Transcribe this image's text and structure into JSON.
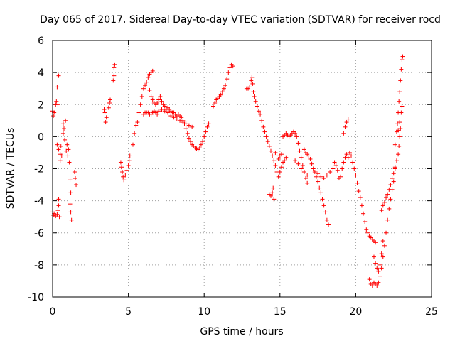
{
  "chart_data": {
    "type": "scatter",
    "title": "Day 065 of 2017, Sidereal Day-to-day VTEC variation (SDTVAR) for receiver rocd",
    "xlabel": "GPS time / hours",
    "ylabel": "SDTVAR / TECUs",
    "xlim": [
      0,
      25
    ],
    "ylim": [
      -10,
      6
    ],
    "xticks": [
      0,
      5,
      10,
      15,
      20,
      25
    ],
    "yticks": [
      -10,
      -8,
      -6,
      -4,
      -2,
      0,
      2,
      4,
      6
    ],
    "grid": true,
    "marker": "plus",
    "color": "#ff0000",
    "series": [
      {
        "name": "sdtvar",
        "points": [
          [
            0.0,
            1.6
          ],
          [
            0.05,
            1.3
          ],
          [
            0.1,
            1.5
          ],
          [
            0.2,
            2.0
          ],
          [
            0.25,
            2.2
          ],
          [
            0.3,
            3.1
          ],
          [
            0.35,
            2.0
          ],
          [
            0.4,
            3.8
          ],
          [
            0.3,
            -0.5
          ],
          [
            0.4,
            -0.8
          ],
          [
            0.5,
            -1.1
          ],
          [
            0.5,
            -1.5
          ],
          [
            0.55,
            -0.6
          ],
          [
            0.6,
            -1.2
          ],
          [
            0.7,
            0.2
          ],
          [
            0.7,
            0.8
          ],
          [
            0.75,
            0.5
          ],
          [
            0.8,
            -0.2
          ],
          [
            0.85,
            1.0
          ],
          [
            0.9,
            -0.9
          ],
          [
            0.95,
            -0.5
          ],
          [
            1.0,
            -1.2
          ],
          [
            1.05,
            -0.8
          ],
          [
            1.1,
            -1.6
          ],
          [
            0.0,
            -4.7
          ],
          [
            0.05,
            -4.9
          ],
          [
            0.1,
            -4.8
          ],
          [
            0.2,
            -4.95
          ],
          [
            0.3,
            -4.85
          ],
          [
            0.35,
            -4.6
          ],
          [
            0.4,
            -4.3
          ],
          [
            0.4,
            -3.9
          ],
          [
            0.45,
            -5.0
          ],
          [
            1.15,
            -2.7
          ],
          [
            1.2,
            -3.5
          ],
          [
            1.15,
            -4.2
          ],
          [
            1.2,
            -4.7
          ],
          [
            1.25,
            -5.2
          ],
          [
            1.45,
            -2.2
          ],
          [
            1.5,
            -2.6
          ],
          [
            1.55,
            -3.0
          ],
          [
            3.4,
            1.7
          ],
          [
            3.45,
            1.5
          ],
          [
            3.5,
            0.9
          ],
          [
            3.55,
            1.2
          ],
          [
            3.7,
            1.8
          ],
          [
            3.75,
            2.1
          ],
          [
            3.8,
            2.3
          ],
          [
            4.0,
            3.5
          ],
          [
            4.05,
            3.8
          ],
          [
            4.05,
            4.3
          ],
          [
            4.1,
            4.5
          ],
          [
            4.5,
            -1.6
          ],
          [
            4.55,
            -1.9
          ],
          [
            4.6,
            -2.2
          ],
          [
            4.65,
            -2.5
          ],
          [
            4.7,
            -2.7
          ],
          [
            4.8,
            -2.4
          ],
          [
            4.9,
            -2.1
          ],
          [
            5.0,
            -1.8
          ],
          [
            5.05,
            -1.5
          ],
          [
            5.1,
            -1.2
          ],
          [
            5.3,
            -0.5
          ],
          [
            5.4,
            0.2
          ],
          [
            5.5,
            0.7
          ],
          [
            5.6,
            0.9
          ],
          [
            5.7,
            1.5
          ],
          [
            5.8,
            2.0
          ],
          [
            5.9,
            2.5
          ],
          [
            6.0,
            3.0
          ],
          [
            6.1,
            3.2
          ],
          [
            6.2,
            3.4
          ],
          [
            6.3,
            3.7
          ],
          [
            6.4,
            3.9
          ],
          [
            6.5,
            4.0
          ],
          [
            6.6,
            4.1
          ],
          [
            6.4,
            2.9
          ],
          [
            6.5,
            2.5
          ],
          [
            6.6,
            2.3
          ],
          [
            6.7,
            2.1
          ],
          [
            6.8,
            2.0
          ],
          [
            6.9,
            2.1
          ],
          [
            7.0,
            2.3
          ],
          [
            7.1,
            2.5
          ],
          [
            7.2,
            2.2
          ],
          [
            7.3,
            2.0
          ],
          [
            7.4,
            1.9
          ],
          [
            7.5,
            1.7
          ],
          [
            7.6,
            1.8
          ],
          [
            7.7,
            1.7
          ],
          [
            7.8,
            1.6
          ],
          [
            7.9,
            1.5
          ],
          [
            8.0,
            1.5
          ],
          [
            8.1,
            1.4
          ],
          [
            8.2,
            1.3
          ],
          [
            8.3,
            1.4
          ],
          [
            8.4,
            1.3
          ],
          [
            8.5,
            1.2
          ],
          [
            8.6,
            1.0
          ],
          [
            8.7,
            0.8
          ],
          [
            8.8,
            0.5
          ],
          [
            8.9,
            0.2
          ],
          [
            9.0,
            -0.1
          ],
          [
            9.1,
            -0.3
          ],
          [
            9.2,
            -0.5
          ],
          [
            9.3,
            -0.6
          ],
          [
            9.4,
            -0.7
          ],
          [
            9.5,
            -0.75
          ],
          [
            9.6,
            -0.8
          ],
          [
            9.7,
            -0.7
          ],
          [
            9.8,
            -0.5
          ],
          [
            9.9,
            -0.3
          ],
          [
            10.0,
            0.0
          ],
          [
            10.1,
            0.3
          ],
          [
            10.2,
            0.6
          ],
          [
            10.3,
            0.8
          ],
          [
            6.0,
            1.4
          ],
          [
            6.1,
            1.5
          ],
          [
            6.2,
            1.5
          ],
          [
            6.3,
            1.5
          ],
          [
            6.4,
            1.4
          ],
          [
            6.5,
            1.4
          ],
          [
            6.6,
            1.5
          ],
          [
            6.7,
            1.6
          ],
          [
            6.8,
            1.5
          ],
          [
            6.9,
            1.4
          ],
          [
            7.0,
            1.6
          ],
          [
            7.2,
            1.7
          ],
          [
            7.4,
            1.6
          ],
          [
            7.6,
            1.5
          ],
          [
            7.8,
            1.3
          ],
          [
            8.0,
            1.2
          ],
          [
            8.2,
            1.1
          ],
          [
            8.4,
            1.0
          ],
          [
            8.6,
            0.9
          ],
          [
            8.8,
            0.8
          ],
          [
            9.0,
            0.7
          ],
          [
            9.2,
            0.6
          ],
          [
            10.6,
            1.9
          ],
          [
            10.7,
            2.1
          ],
          [
            10.8,
            2.3
          ],
          [
            10.9,
            2.4
          ],
          [
            11.0,
            2.5
          ],
          [
            11.1,
            2.6
          ],
          [
            11.2,
            2.8
          ],
          [
            11.3,
            3.0
          ],
          [
            11.4,
            3.2
          ],
          [
            11.5,
            3.6
          ],
          [
            11.6,
            4.0
          ],
          [
            11.7,
            4.3
          ],
          [
            11.8,
            4.5
          ],
          [
            11.9,
            4.4
          ],
          [
            12.8,
            3.0
          ],
          [
            12.9,
            3.0
          ],
          [
            13.0,
            3.1
          ],
          [
            13.1,
            3.5
          ],
          [
            13.15,
            3.7
          ],
          [
            13.2,
            3.3
          ],
          [
            13.25,
            2.8
          ],
          [
            13.3,
            2.5
          ],
          [
            13.4,
            2.2
          ],
          [
            13.5,
            1.9
          ],
          [
            13.6,
            1.6
          ],
          [
            13.7,
            1.4
          ],
          [
            13.8,
            1.0
          ],
          [
            13.9,
            0.6
          ],
          [
            14.0,
            0.3
          ],
          [
            14.1,
            0.0
          ],
          [
            14.2,
            -0.3
          ],
          [
            14.3,
            -0.6
          ],
          [
            14.4,
            -0.9
          ],
          [
            14.5,
            -1.2
          ],
          [
            14.6,
            -1.5
          ],
          [
            14.7,
            -1.8
          ],
          [
            14.8,
            -2.2
          ],
          [
            14.9,
            -2.5
          ],
          [
            15.0,
            -2.2
          ],
          [
            15.1,
            -1.9
          ],
          [
            15.2,
            -1.6
          ],
          [
            15.3,
            -1.5
          ],
          [
            15.4,
            -1.3
          ],
          [
            14.3,
            -3.6
          ],
          [
            14.4,
            -3.7
          ],
          [
            14.5,
            -3.5
          ],
          [
            14.55,
            -3.2
          ],
          [
            14.6,
            -3.9
          ],
          [
            14.7,
            -1.0
          ],
          [
            14.8,
            -1.2
          ],
          [
            14.9,
            -1.4
          ],
          [
            15.0,
            -1.2
          ],
          [
            15.1,
            -1.1
          ],
          [
            15.2,
            0.0
          ],
          [
            15.3,
            0.1
          ],
          [
            15.4,
            0.2
          ],
          [
            15.5,
            0.1
          ],
          [
            15.6,
            0.0
          ],
          [
            15.7,
            0.1
          ],
          [
            15.8,
            0.2
          ],
          [
            15.9,
            0.3
          ],
          [
            16.0,
            0.2
          ],
          [
            16.1,
            0.0
          ],
          [
            16.2,
            -0.4
          ],
          [
            16.3,
            -0.9
          ],
          [
            16.4,
            -1.3
          ],
          [
            16.5,
            -1.8
          ],
          [
            16.6,
            -2.2
          ],
          [
            16.7,
            -2.6
          ],
          [
            16.8,
            -2.9
          ],
          [
            16.0,
            -1.5
          ],
          [
            16.2,
            -1.7
          ],
          [
            16.4,
            -2.0
          ],
          [
            16.6,
            -2.2
          ],
          [
            16.8,
            -2.4
          ],
          [
            16.6,
            -0.8
          ],
          [
            16.7,
            -1.0
          ],
          [
            16.8,
            -1.1
          ],
          [
            16.9,
            -1.2
          ],
          [
            17.0,
            -1.4
          ],
          [
            17.1,
            -1.7
          ],
          [
            17.2,
            -2.0
          ],
          [
            17.3,
            -2.2
          ],
          [
            17.4,
            -2.5
          ],
          [
            17.5,
            -2.8
          ],
          [
            17.6,
            -3.2
          ],
          [
            17.7,
            -3.5
          ],
          [
            17.8,
            -3.9
          ],
          [
            17.9,
            -4.3
          ],
          [
            18.0,
            -4.7
          ],
          [
            18.1,
            -5.2
          ],
          [
            18.2,
            -5.5
          ],
          [
            17.5,
            -2.3
          ],
          [
            17.7,
            -2.5
          ],
          [
            17.9,
            -2.6
          ],
          [
            18.1,
            -2.4
          ],
          [
            18.3,
            -2.2
          ],
          [
            18.5,
            -2.0
          ],
          [
            18.6,
            -1.6
          ],
          [
            18.7,
            -1.8
          ],
          [
            18.8,
            -2.1
          ],
          [
            18.9,
            -2.6
          ],
          [
            19.0,
            -2.5
          ],
          [
            19.1,
            -2.0
          ],
          [
            19.2,
            -1.6
          ],
          [
            19.3,
            -1.3
          ],
          [
            19.4,
            -1.1
          ],
          [
            19.5,
            -1.3
          ],
          [
            19.6,
            -1.0
          ],
          [
            19.7,
            -1.2
          ],
          [
            19.8,
            -1.6
          ],
          [
            19.9,
            -2.0
          ],
          [
            20.0,
            -2.4
          ],
          [
            20.1,
            -2.9
          ],
          [
            20.2,
            -3.4
          ],
          [
            20.3,
            -3.8
          ],
          [
            20.4,
            -4.3
          ],
          [
            20.5,
            -4.8
          ],
          [
            20.6,
            -5.3
          ],
          [
            20.7,
            -5.8
          ],
          [
            19.2,
            0.2
          ],
          [
            19.3,
            0.6
          ],
          [
            19.4,
            0.9
          ],
          [
            19.5,
            1.1
          ],
          [
            20.8,
            -6.0
          ],
          [
            20.9,
            -6.2
          ],
          [
            21.0,
            -6.3
          ],
          [
            21.1,
            -6.4
          ],
          [
            21.2,
            -6.5
          ],
          [
            21.3,
            -6.6
          ],
          [
            20.9,
            -8.9
          ],
          [
            21.0,
            -9.2
          ],
          [
            21.1,
            -9.3
          ],
          [
            21.2,
            -9.1
          ],
          [
            21.3,
            -9.2
          ],
          [
            21.4,
            -9.3
          ],
          [
            21.5,
            -9.1
          ],
          [
            21.6,
            -8.7
          ],
          [
            21.7,
            -8.2
          ],
          [
            21.8,
            -7.5
          ],
          [
            21.9,
            -6.8
          ],
          [
            22.0,
            -6.0
          ],
          [
            22.1,
            -5.2
          ],
          [
            22.2,
            -4.5
          ],
          [
            22.3,
            -3.9
          ],
          [
            22.4,
            -3.3
          ],
          [
            22.5,
            -2.8
          ],
          [
            22.6,
            -2.0
          ],
          [
            21.2,
            -7.5
          ],
          [
            21.3,
            -7.9
          ],
          [
            21.4,
            -8.2
          ],
          [
            21.5,
            -8.4
          ],
          [
            21.6,
            -8.0
          ],
          [
            21.7,
            -7.3
          ],
          [
            21.8,
            -6.5
          ],
          [
            21.7,
            -4.6
          ],
          [
            21.8,
            -4.3
          ],
          [
            21.9,
            -4.1
          ],
          [
            22.0,
            -3.8
          ],
          [
            22.1,
            -3.6
          ],
          [
            22.2,
            -3.3
          ],
          [
            22.3,
            -3.0
          ],
          [
            22.4,
            -2.6
          ],
          [
            22.5,
            -2.3
          ],
          [
            22.6,
            -1.9
          ],
          [
            22.7,
            -1.5
          ],
          [
            22.8,
            -1.1
          ],
          [
            22.85,
            -0.6
          ],
          [
            22.9,
            0.0
          ],
          [
            22.95,
            0.5
          ],
          [
            22.6,
            -0.5
          ],
          [
            22.7,
            0.3
          ],
          [
            22.75,
            0.8
          ],
          [
            22.8,
            1.5
          ],
          [
            22.85,
            2.2
          ],
          [
            22.9,
            2.8
          ],
          [
            22.95,
            3.5
          ],
          [
            23.0,
            4.2
          ],
          [
            23.05,
            4.8
          ],
          [
            23.1,
            5.0
          ],
          [
            22.8,
            0.4
          ],
          [
            22.9,
            0.9
          ],
          [
            23.0,
            1.5
          ],
          [
            23.05,
            1.9
          ]
        ]
      }
    ]
  }
}
